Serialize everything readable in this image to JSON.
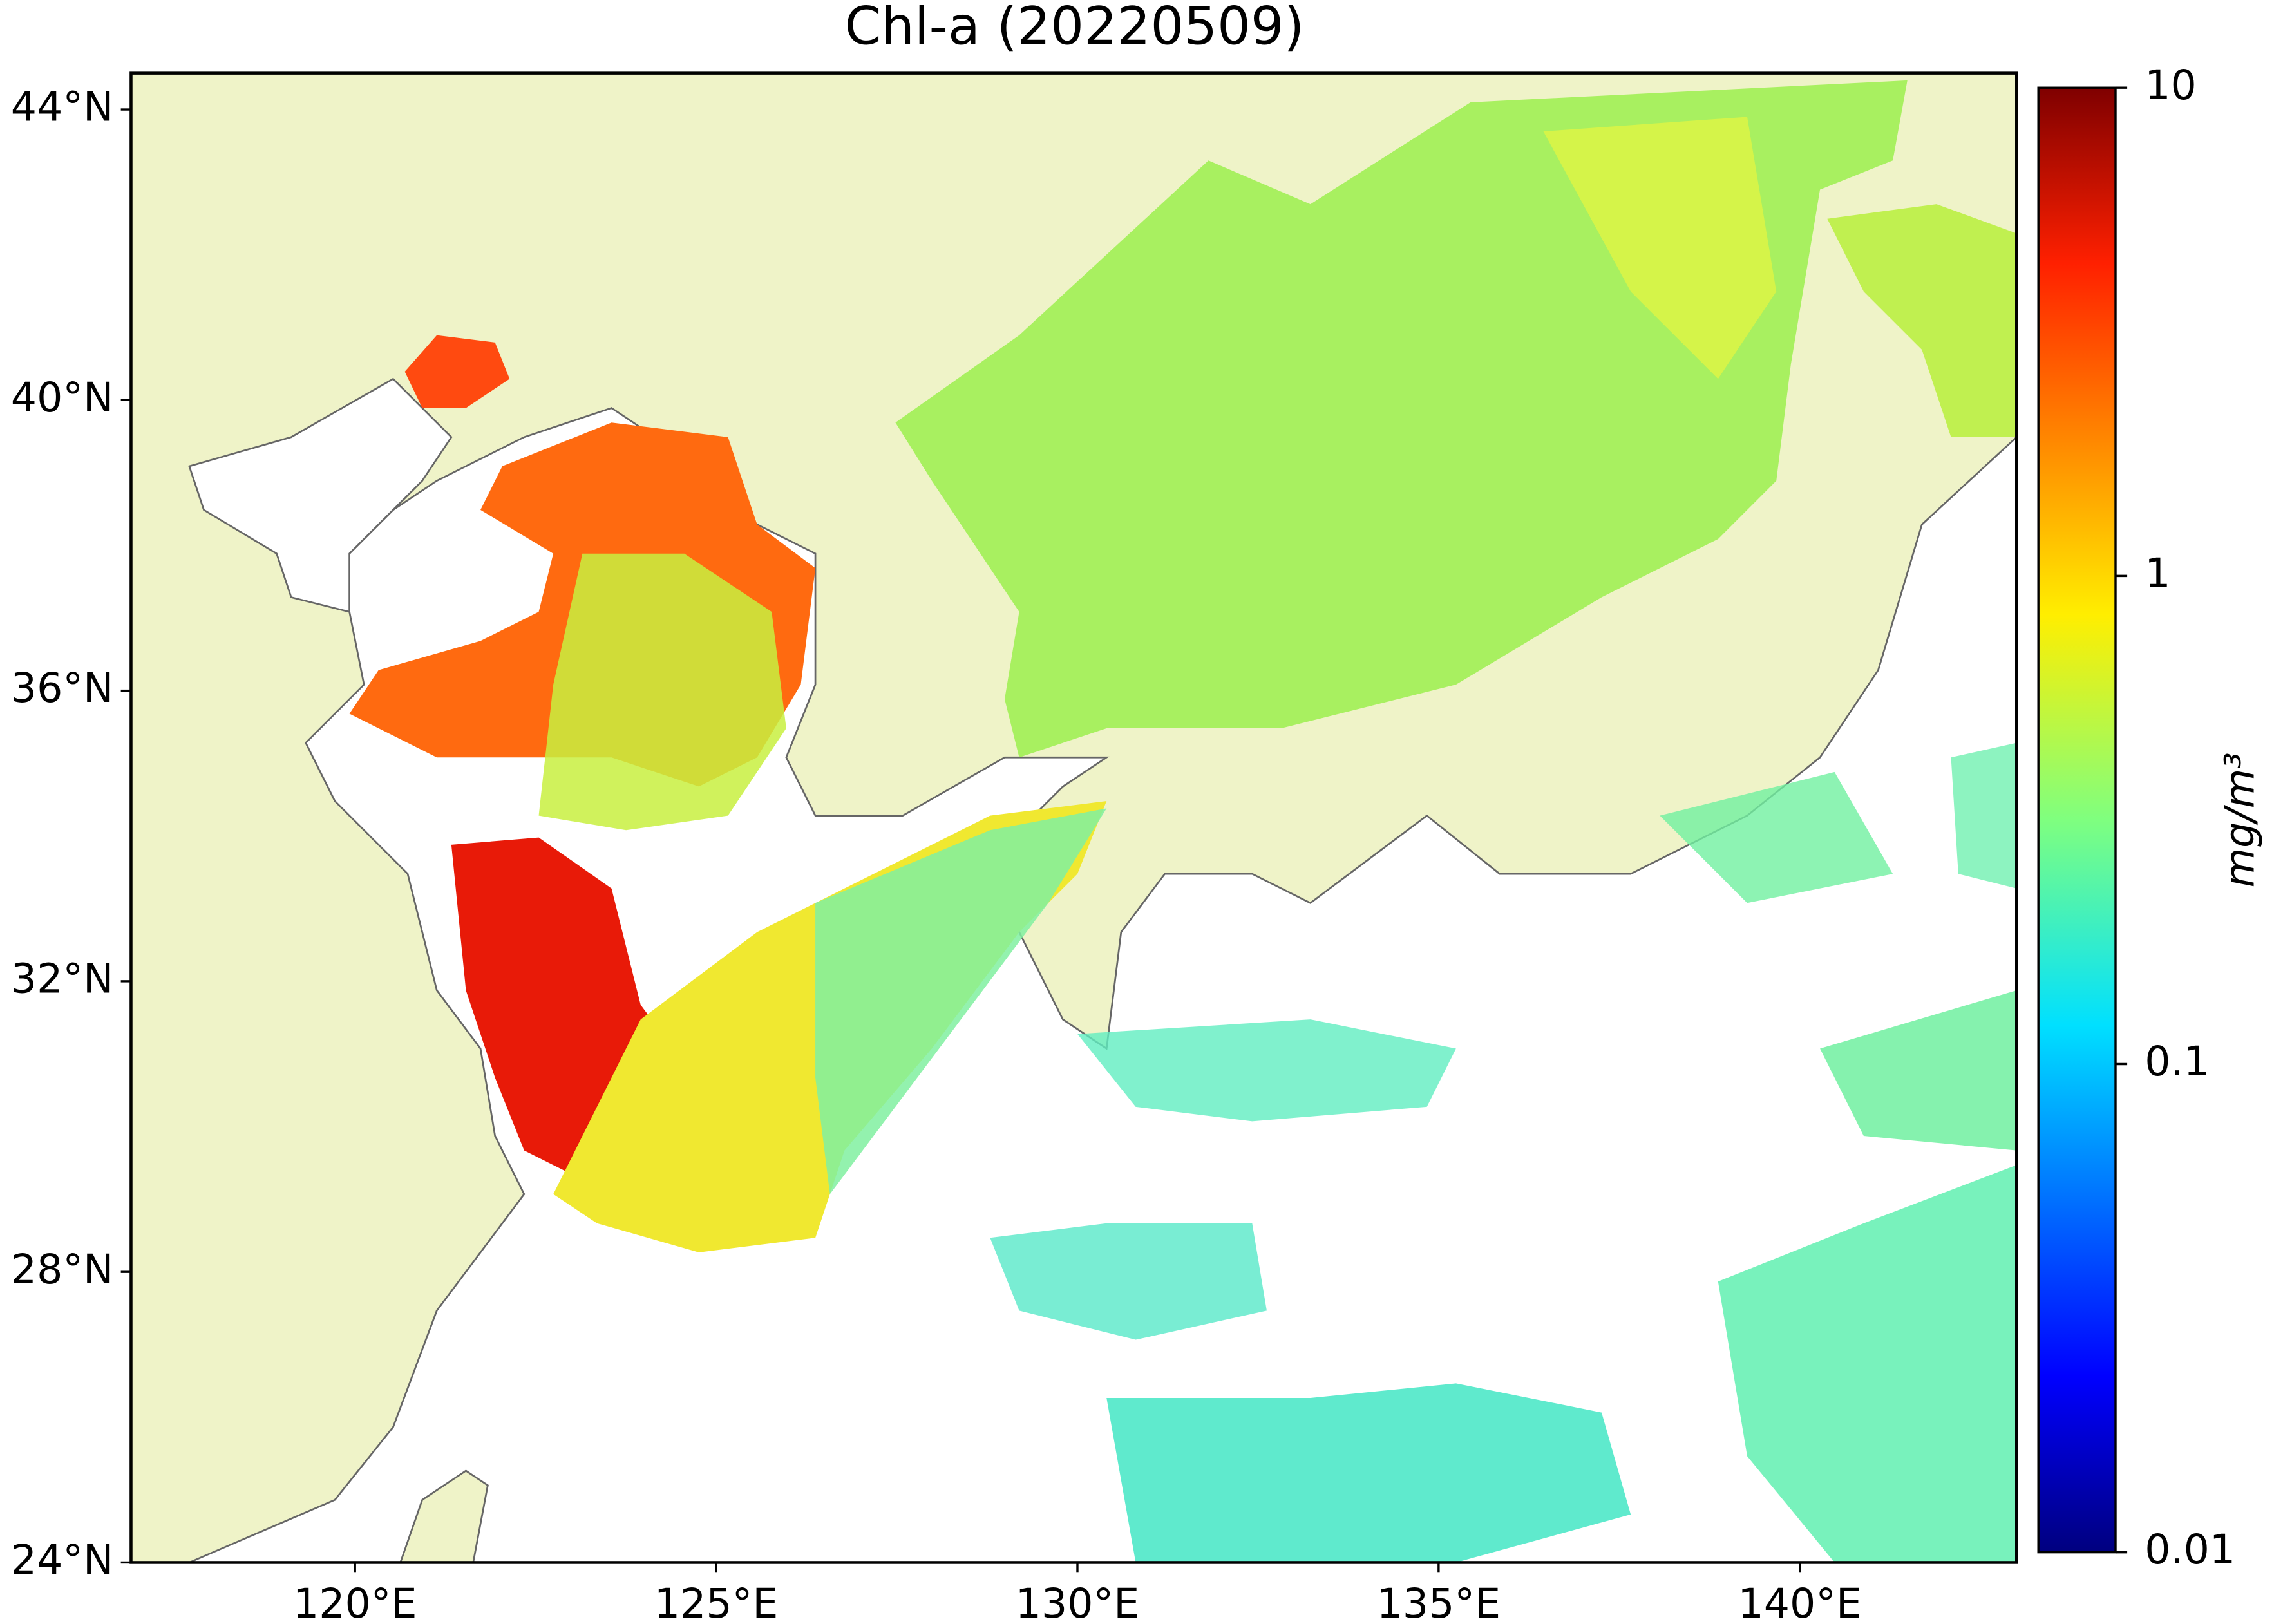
{
  "chart_data": {
    "type": "map",
    "title": "Chl-a (20220509)",
    "xlim": [
      116.9,
      143.0
    ],
    "ylim": [
      24,
      44.5
    ],
    "xticks": [
      {
        "value": 120,
        "label": "120°E"
      },
      {
        "value": 125,
        "label": "125°E"
      },
      {
        "value": 130,
        "label": "130°E"
      },
      {
        "value": 135,
        "label": "135°E"
      },
      {
        "value": 140,
        "label": "140°E"
      }
    ],
    "yticks": [
      {
        "value": 24,
        "label": "24°N"
      },
      {
        "value": 28,
        "label": "28°N"
      },
      {
        "value": 32,
        "label": "32°N"
      },
      {
        "value": 36,
        "label": "36°N"
      },
      {
        "value": 40,
        "label": "40°N"
      },
      {
        "value": 44,
        "label": "44°N"
      }
    ],
    "colorbar": {
      "label": "mg/m³",
      "log_scale": true,
      "lim": [
        0.01,
        10
      ],
      "ticks": [
        0.01,
        0.1,
        1,
        10
      ]
    }
  }
}
